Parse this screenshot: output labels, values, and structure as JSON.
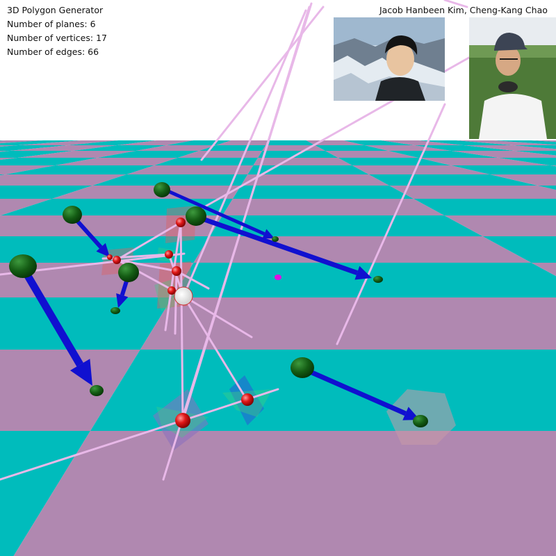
{
  "hud": {
    "title": "3D Polygon Generator",
    "planes_label": "Number of planes: ",
    "planes_count": 6,
    "vertices_label": "Number of vertices: ",
    "vertices_count": 17,
    "edges_label": "Number of edges: ",
    "edges_count": 66
  },
  "authors": "Jacob Hanbeen Kim, Cheng-Kang Chao",
  "photos": [
    "author-photo",
    "author-photo"
  ],
  "colors": {
    "floor_tile_a": "#00bcbc",
    "floor_tile_b": "#b088b0",
    "sky": "#ffffff",
    "arrow": "#1010d0",
    "edge_line": "#e8b8e8",
    "vertex_sphere": "#dd1010",
    "arrow_base_sphere": "#156015",
    "plane_red": "#e06060",
    "plane_green": "#40d080",
    "plane_blue": "#2070d0",
    "marker_magenta": "#e010e0"
  }
}
